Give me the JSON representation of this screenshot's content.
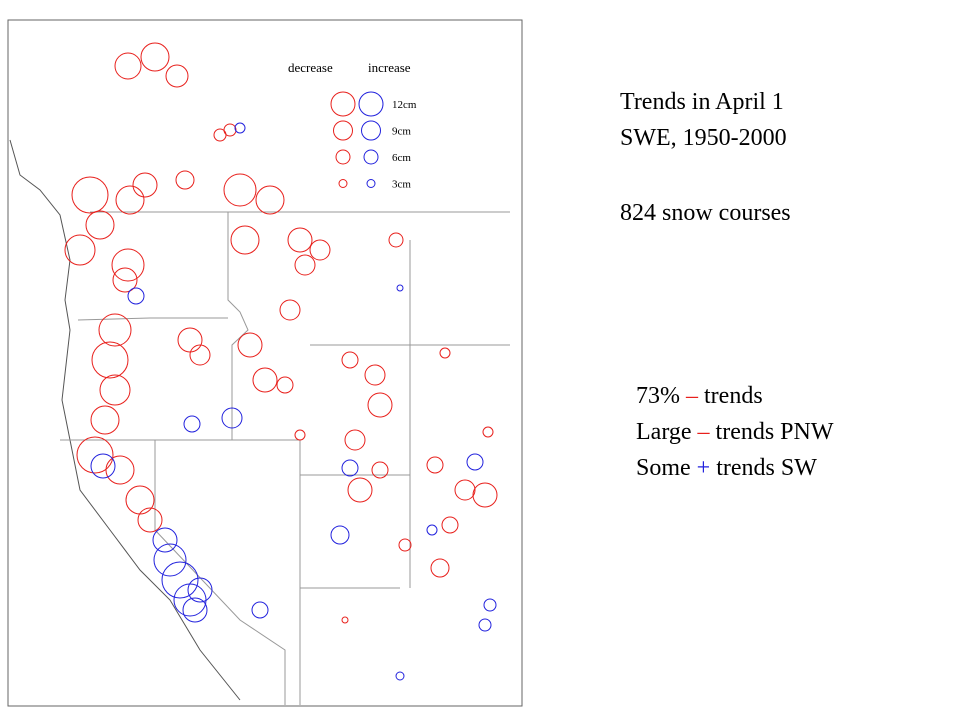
{
  "legend": {
    "decrease": "decrease",
    "increase": "increase",
    "sizes": [
      "12cm",
      "9cm",
      "6cm",
      "3cm"
    ],
    "decrease_color": "#e8201c",
    "increase_color": "#2222dd"
  },
  "title": {
    "line1": "Trends in April 1",
    "line2": "SWE, 1950-2000"
  },
  "count": "824 snow courses",
  "notes": [
    {
      "label": "73%",
      "sign": "–",
      "rest": "trends",
      "sign_color": "#e8201c"
    },
    {
      "label": "Large",
      "sign": "–",
      "rest": "trends PNW",
      "sign_color": "#e8201c"
    },
    {
      "label": "Some",
      "sign": "+",
      "rest": "trends SW",
      "sign_color": "#2222dd"
    }
  ]
}
